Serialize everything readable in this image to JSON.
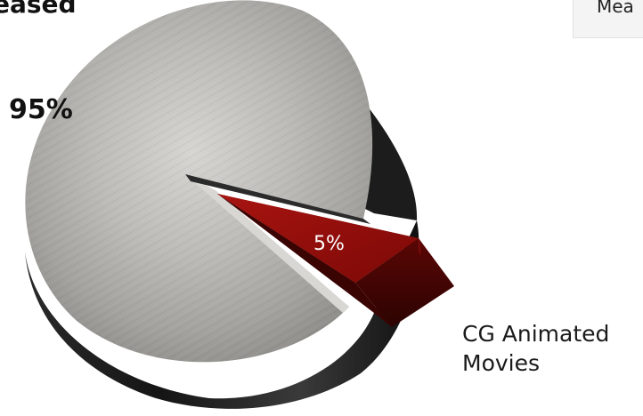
{
  "title": "eased",
  "legend_label": "Mea",
  "chart_data": {
    "type": "pie",
    "slices": [
      {
        "label": "",
        "value": 95,
        "display": "95%",
        "color": "#a9a9a6"
      },
      {
        "label": "CG Animated Movies",
        "value": 5,
        "display": "5%",
        "color": "#8b0d0b"
      }
    ],
    "category_label_line1": "CG Animated",
    "category_label_line2": "Movies"
  }
}
